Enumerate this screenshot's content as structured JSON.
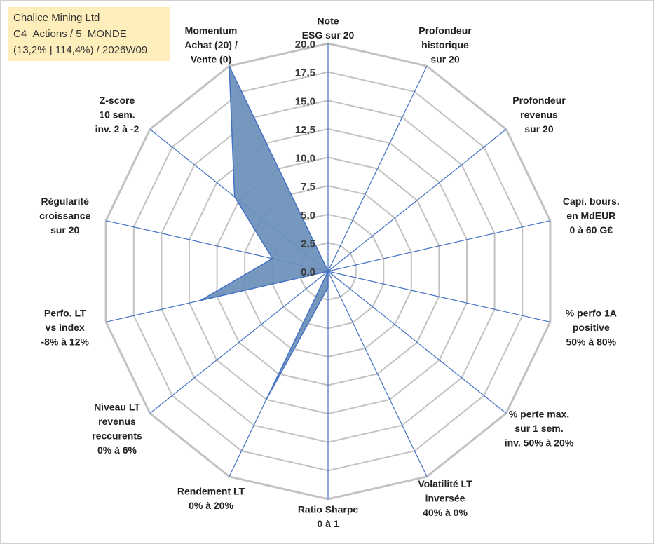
{
  "info_box": {
    "line1": "Chalice Mining Ltd",
    "line2": "C4_Actions / 5_MONDE",
    "line3": "(13,2% | 114,4%) / 2026W09"
  },
  "chart_data": {
    "type": "radar",
    "title": "",
    "range": [
      0,
      20
    ],
    "ticks": [
      "0,0",
      "2,5",
      "5,0",
      "7,5",
      "10,0",
      "12,5",
      "15,0",
      "17,5",
      "20,0"
    ],
    "axes": [
      {
        "label": [
          "Note",
          "ESG sur 20"
        ],
        "value": 0
      },
      {
        "label": [
          "Profondeur",
          "historique",
          "sur 20"
        ],
        "value": 0
      },
      {
        "label": [
          "Profondeur",
          "revenus",
          "sur 20"
        ],
        "value": 0
      },
      {
        "label": [
          "Capi. bours.",
          "en MdEUR",
          "0 à 60 G€"
        ],
        "value": 0
      },
      {
        "label": [
          "% perfo 1A",
          "positive",
          "50% à 80%"
        ],
        "value": 0
      },
      {
        "label": [
          "% perte max.",
          "sur 1 sem.",
          "inv. 50% à 20%"
        ],
        "value": 0
      },
      {
        "label": [
          "Volatilité LT",
          "inversée",
          "40% à 0%"
        ],
        "value": 0
      },
      {
        "label": [
          "Ratio Sharpe",
          "0 à 1"
        ],
        "value": 1.4
      },
      {
        "label": [
          "Rendement LT",
          "0% à 20%"
        ],
        "value": 12.5
      },
      {
        "label": [
          "Niveau LT",
          "revenus",
          "reccurents",
          "0% à 6%"
        ],
        "value": 0
      },
      {
        "label": [
          "Perfo. LT",
          "vs index",
          "-8% à 12%"
        ],
        "value": 11.5
      },
      {
        "label": [
          "Régularité",
          "croissance",
          "sur 20"
        ],
        "value": 5
      },
      {
        "label": [
          "Z-score",
          "10 sem.",
          "inv. 2 à -2"
        ],
        "value": 10.5
      },
      {
        "label": [
          "Momentum",
          "Achat (20) /",
          "Vente (0)"
        ],
        "value": 20
      }
    ],
    "colors": {
      "grid": "#c2c2c2",
      "spoke": "#4472c4",
      "fill": "#6a8fba",
      "stroke": "#4472c4"
    }
  }
}
